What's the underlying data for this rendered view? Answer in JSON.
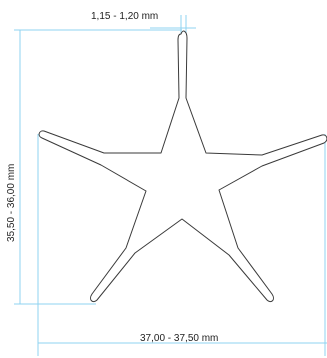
{
  "dimensions": {
    "top_width": "1,15 - 1,20 mm",
    "height": "35,50 - 36,00 mm",
    "width": "37,00 - 37,50 mm"
  },
  "colors": {
    "dimension_line": "#8fd3f0",
    "outline": "#3a3a3a",
    "text": "#222222"
  }
}
